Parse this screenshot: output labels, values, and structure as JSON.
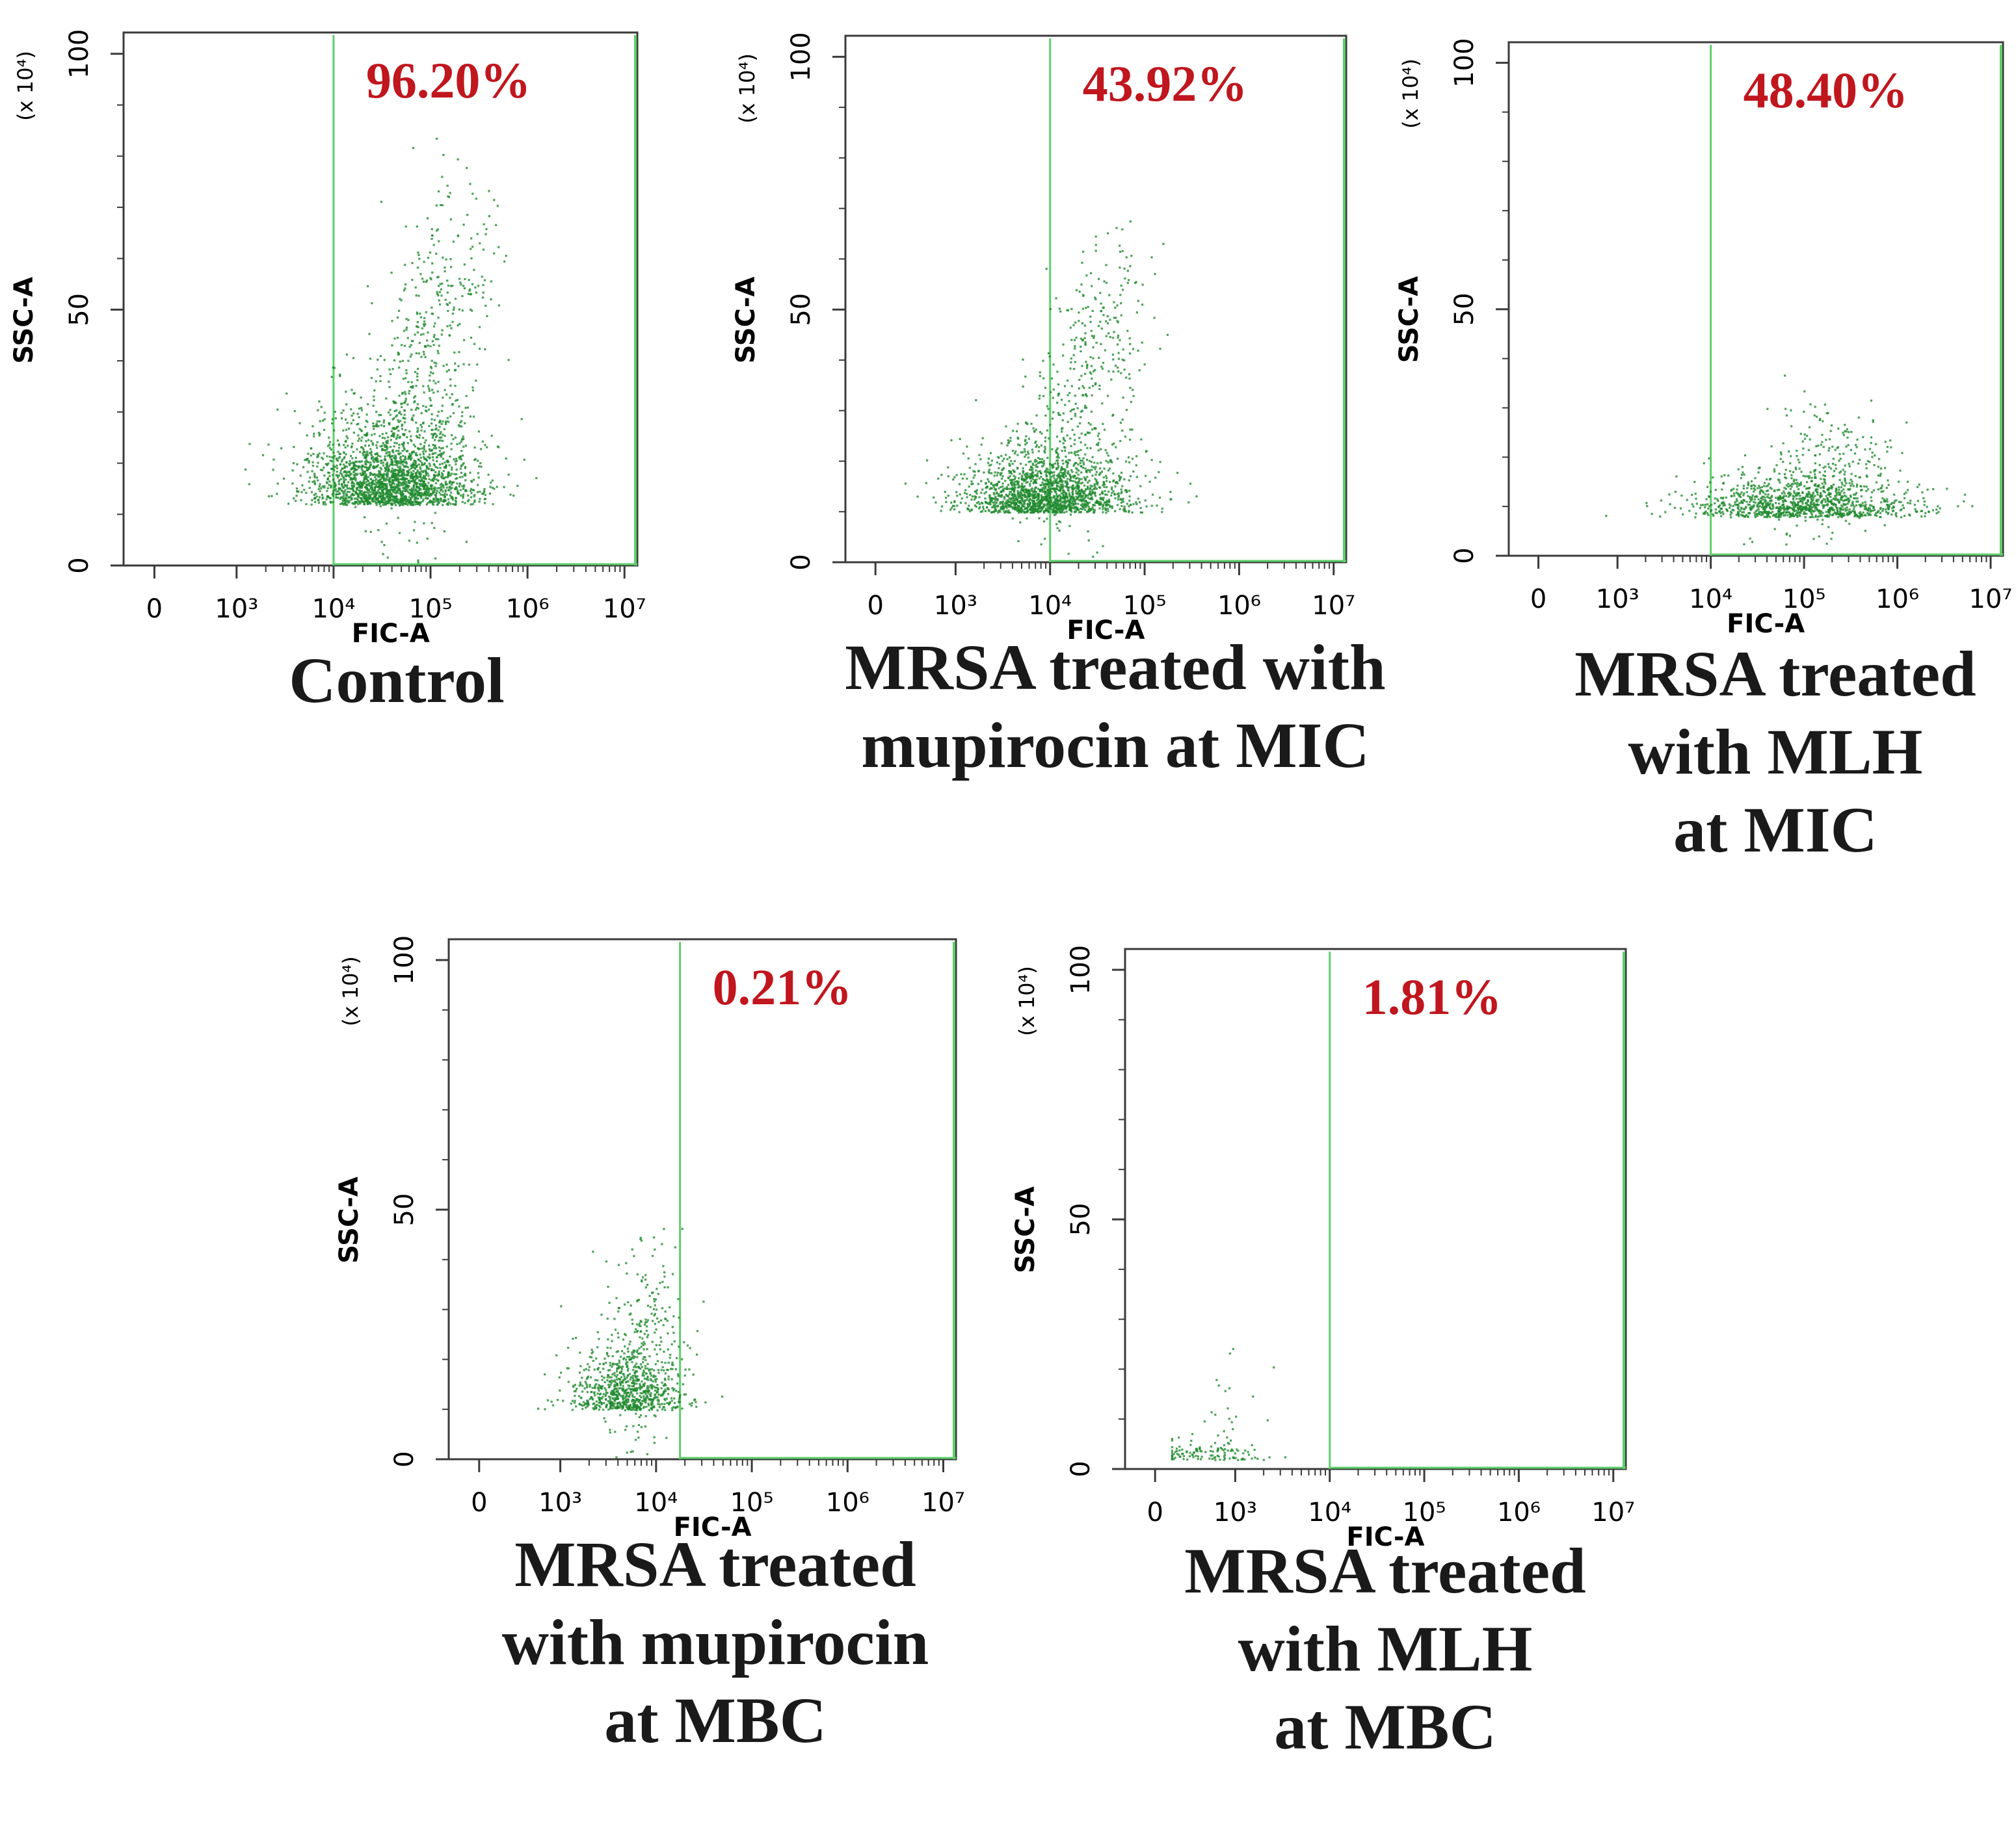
{
  "figure": {
    "colors": {
      "dots": "#1f8a2e",
      "gate": "#5ccf6a",
      "axis": "#3a3a3a",
      "percent": "#c0161e"
    }
  },
  "chart_data": [
    {
      "type": "scatter",
      "title": "Control",
      "percent_label": "96.20%",
      "xlabel": "FIC-A",
      "ylabel": "SSC-A",
      "y_unit": "(x 10⁴)",
      "x_ticks": [
        "0",
        "10³",
        "10⁴",
        "10⁵",
        "10⁶",
        "10⁷"
      ],
      "y_ticks": [
        "0",
        "50",
        "100"
      ],
      "ylim": [
        0,
        100
      ],
      "gate_x_log": 4,
      "population": {
        "center_log_x": 4.6,
        "center_y": 12,
        "spread_log_x": 0.45,
        "spread_y": 9,
        "tail_log_x": 5.3,
        "tail_y": 60,
        "n": 2600
      }
    },
    {
      "type": "scatter",
      "title": "MRSA treated with mupirocin at MIC",
      "percent_label": "43.92%",
      "xlabel": "FIC-A",
      "ylabel": "SSC-A",
      "y_unit": "(x 10⁴)",
      "x_ticks": [
        "0",
        "10³",
        "10⁴",
        "10⁵",
        "10⁶",
        "10⁷"
      ],
      "y_ticks": [
        "0",
        "50",
        "100"
      ],
      "ylim": [
        0,
        100
      ],
      "gate_x_log": 4,
      "population": {
        "center_log_x": 3.95,
        "center_y": 10,
        "spread_log_x": 0.45,
        "spread_y": 7,
        "tail_log_x": 4.7,
        "tail_y": 55,
        "n": 2100
      }
    },
    {
      "type": "scatter",
      "title": "MRSA treated with MLH at MIC",
      "percent_label": "48.40%",
      "xlabel": "FIC-A",
      "ylabel": "SSC-A",
      "y_unit": "(x 10⁴)",
      "x_ticks": [
        "0",
        "10³",
        "10⁴",
        "10⁵",
        "10⁶",
        "10⁷"
      ],
      "y_ticks": [
        "0",
        "50",
        "100"
      ],
      "ylim": [
        0,
        100
      ],
      "gate_x_log": 4,
      "population": {
        "center_log_x": 5.0,
        "center_y": 8,
        "spread_log_x": 0.6,
        "spread_y": 5,
        "tail_log_x": 5.4,
        "tail_y": 25,
        "n": 1300
      }
    },
    {
      "type": "scatter",
      "title": "MRSA treated with mupirocin at MBC",
      "percent_label": "0.21%",
      "xlabel": "FIC-A",
      "ylabel": "SSC-A",
      "y_unit": "(x 10⁴)",
      "x_ticks": [
        "0",
        "10³",
        "10⁴",
        "10⁵",
        "10⁶",
        "10⁷"
      ],
      "y_ticks": [
        "0",
        "50",
        "100"
      ],
      "ylim": [
        0,
        100
      ],
      "gate_x_log": 4.25,
      "population": {
        "center_log_x": 3.7,
        "center_y": 10,
        "spread_log_x": 0.3,
        "spread_y": 7,
        "tail_log_x": 4.0,
        "tail_y": 35,
        "n": 1000
      }
    },
    {
      "type": "scatter",
      "title": "MRSA treated with MLH at MBC",
      "percent_label": "1.81%",
      "xlabel": "FIC-A",
      "ylabel": "SSC-A",
      "y_unit": "(x 10⁴)",
      "x_ticks": [
        "0",
        "10³",
        "10⁴",
        "10⁵",
        "10⁶",
        "10⁷"
      ],
      "y_ticks": [
        "0",
        "50",
        "100"
      ],
      "ylim": [
        0,
        100
      ],
      "gate_x_log": 4,
      "population": {
        "center_log_x": 2.7,
        "center_y": 2,
        "spread_log_x": 0.35,
        "spread_y": 2,
        "tail_log_x": 3.0,
        "tail_y": 20,
        "n": 140
      }
    }
  ],
  "captions": [
    {
      "lines": [
        "Control"
      ]
    },
    {
      "lines": [
        "MRSA treated with",
        "mupirocin at MIC"
      ]
    },
    {
      "lines": [
        "MRSA treated",
        "with MLH",
        "at MIC"
      ]
    },
    {
      "lines": [
        "MRSA treated",
        "with mupirocin",
        "at MBC"
      ]
    },
    {
      "lines": [
        "MRSA treated",
        "with MLH",
        "at MBC"
      ]
    }
  ]
}
